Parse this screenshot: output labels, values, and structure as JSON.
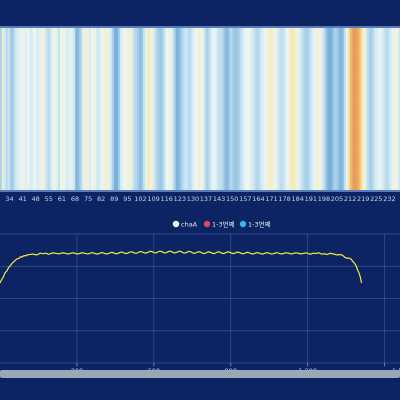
{
  "colors": {
    "background": "#0c2364",
    "heatmap_palette": [
      "#5d9ecf",
      "#9cc8e6",
      "#cbe6f4",
      "#eef6f2",
      "#f6e9ad",
      "#f2c46f",
      "#e79a5b"
    ],
    "trace_line": "#f2ee3a",
    "legend_colors": [
      "#ffffff",
      "#e0495b",
      "#33b6ee"
    ],
    "scrollbar": "#9aa7b5",
    "grid": "#3a5594"
  },
  "chart_data": [
    {
      "type": "heatmap",
      "x_tick_labels": [
        "34",
        "41",
        "48",
        "55",
        "61",
        "68",
        "75",
        "82",
        "89",
        "95",
        "102",
        "109",
        "116",
        "123",
        "130",
        "137",
        "143",
        "150",
        "157",
        "164",
        "171",
        "178",
        "184",
        "191",
        "198",
        "205",
        "212",
        "219",
        "225",
        "232"
      ],
      "column_intensity": [
        0.22,
        0.6,
        0.34,
        0.26,
        0.32,
        0.22,
        0.16,
        0.3,
        0.36,
        0.42,
        0.46,
        0.52,
        0.46,
        0.42,
        0.48,
        0.42,
        0.38,
        0.5,
        0.46,
        0.4,
        0.44,
        0.58,
        0.52,
        0.36,
        0.3,
        0.26,
        0.38,
        0.48,
        0.54,
        0.44,
        0.3,
        0.5,
        0.54,
        0.48,
        0.4,
        0.42,
        0.46,
        0.42,
        0.32,
        0.08,
        0.12,
        0.2,
        0.34,
        0.56,
        0.6,
        0.46,
        0.38,
        0.5,
        0.56,
        0.46,
        0.34,
        0.4,
        0.48,
        0.54,
        0.58,
        0.56,
        0.46,
        0.34,
        0.2,
        0.08,
        0.06,
        0.18,
        0.36,
        0.46,
        0.52,
        0.52,
        0.58,
        0.55,
        0.4,
        0.28,
        0.24,
        0.18,
        0.12,
        0.16,
        0.3,
        0.46,
        0.64,
        0.62,
        0.54,
        0.4,
        0.3,
        0.22,
        0.18,
        0.16,
        0.24,
        0.38,
        0.5,
        0.56,
        0.46,
        0.34,
        0.2,
        0.08,
        0.1,
        0.16,
        0.26,
        0.32,
        0.34,
        0.28,
        0.26,
        0.38,
        0.46,
        0.5,
        0.56,
        0.58,
        0.5,
        0.38,
        0.26,
        0.2,
        0.3,
        0.42,
        0.48,
        0.46,
        0.36,
        0.28,
        0.3,
        0.22,
        0.14,
        0.1,
        0.16,
        0.26,
        0.2,
        0.16,
        0.16,
        0.2,
        0.28,
        0.36,
        0.44,
        0.5,
        0.5,
        0.46,
        0.4,
        0.32,
        0.26,
        0.24,
        0.3,
        0.38,
        0.44,
        0.5,
        0.56,
        0.6,
        0.6,
        0.56,
        0.5,
        0.42,
        0.34,
        0.28,
        0.3,
        0.38,
        0.48,
        0.56,
        0.62,
        0.66,
        0.62,
        0.54,
        0.46,
        0.38,
        0.3,
        0.24,
        0.2,
        0.22,
        0.3,
        0.38,
        0.46,
        0.54,
        0.58,
        0.54,
        0.44,
        0.32,
        0.2,
        0.1,
        0.06,
        0.08,
        0.16,
        0.22,
        0.18,
        0.12,
        0.08,
        0.14,
        0.3,
        0.5,
        0.7,
        0.86,
        0.96,
        1.0,
        0.98,
        0.92,
        0.8,
        0.66,
        0.52,
        0.38,
        0.28,
        0.2,
        0.22,
        0.3,
        0.38,
        0.44,
        0.48,
        0.44,
        0.36,
        0.28,
        0.26,
        0.32,
        0.42,
        0.52,
        0.58,
        0.5,
        0.34
      ]
    },
    {
      "type": "line",
      "legend": [
        "chaA",
        "1-3번째",
        "1-3번째"
      ],
      "x_tick_labels": [
        "300",
        "600",
        "900",
        "1,200",
        "1,5"
      ],
      "x_range": [
        0,
        1560
      ],
      "y_range": [
        0,
        1
      ],
      "grid": true,
      "series": [
        {
          "name": "chaA",
          "x": [
            0,
            20,
            40,
            60,
            80,
            100,
            120,
            150,
            200,
            300,
            400,
            500,
            600,
            700,
            800,
            900,
            1000,
            1100,
            1200,
            1250,
            1300,
            1340,
            1370,
            1390,
            1400,
            1410
          ],
          "y": [
            0.62,
            0.7,
            0.76,
            0.8,
            0.82,
            0.83,
            0.84,
            0.845,
            0.85,
            0.85,
            0.85,
            0.855,
            0.86,
            0.86,
            0.855,
            0.855,
            0.85,
            0.85,
            0.85,
            0.848,
            0.845,
            0.83,
            0.8,
            0.75,
            0.7,
            0.62
          ]
        }
      ]
    }
  ]
}
